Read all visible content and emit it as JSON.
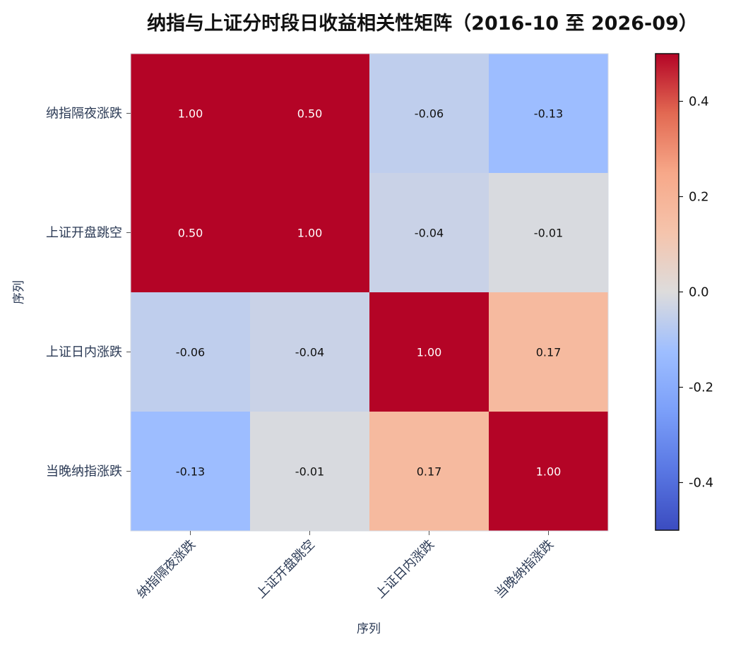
{
  "chart_data": {
    "type": "heatmap",
    "title": "纳指与上证分时段日收益相关性矩阵（2016-10 至 2026-09）",
    "xlabel": "序列",
    "ylabel": "序列",
    "rows": [
      "纳指隔夜涨跌",
      "上证开盘跳空",
      "上证日内涨跌",
      "当晚纳指涨跌"
    ],
    "columns": [
      "纳指隔夜涨跌",
      "上证开盘跳空",
      "上证日内涨跌",
      "当晚纳指涨跌"
    ],
    "values": [
      [
        1.0,
        0.5,
        -0.06,
        -0.13
      ],
      [
        0.5,
        1.0,
        -0.04,
        -0.01
      ],
      [
        -0.06,
        -0.04,
        1.0,
        0.17
      ],
      [
        -0.13,
        -0.01,
        0.17,
        1.0
      ]
    ],
    "value_labels": [
      [
        "1.00",
        "0.50",
        "-0.06",
        "-0.13"
      ],
      [
        "0.50",
        "1.00",
        "-0.04",
        "-0.01"
      ],
      [
        "-0.06",
        "-0.04",
        "1.00",
        "0.17"
      ],
      [
        "-0.13",
        "-0.01",
        "0.17",
        "1.00"
      ]
    ],
    "colormap": "coolwarm",
    "vmin": -0.5,
    "vmax": 0.5,
    "colorbar_ticks": [
      0.4,
      0.2,
      0.0,
      -0.2,
      -0.4
    ],
    "colorbar_tick_labels": [
      "0.4",
      "0.2",
      "0.0",
      "-0.2",
      "-0.4"
    ]
  }
}
